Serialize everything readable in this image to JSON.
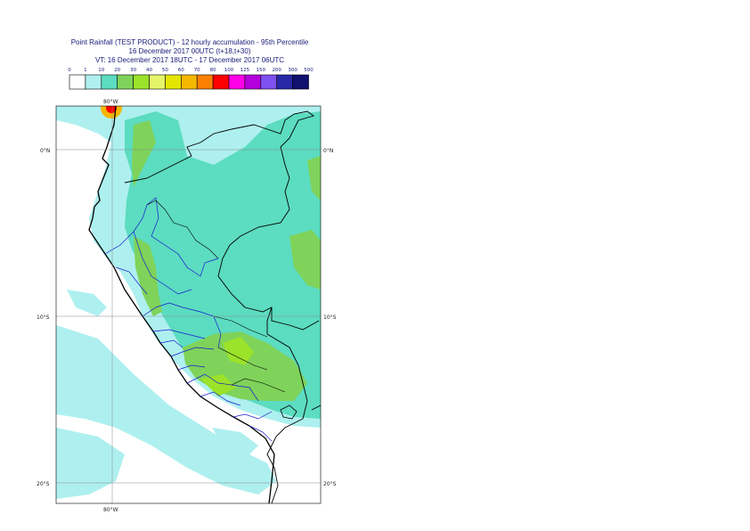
{
  "title": {
    "line1": "Point Rainfall (TEST PRODUCT) - 12 hourly accumulation - 95th Percentile",
    "line2": "16 December 2017 00UTC (t+18,t+30)",
    "line3": "VT: 16 December 2017 18UTC - 17 December 2017 06UTC"
  },
  "legend": {
    "thresholds": [
      "0",
      "1",
      "10",
      "20",
      "30",
      "40",
      "50",
      "60",
      "70",
      "80",
      "100",
      "125",
      "150",
      "200",
      "300",
      "500"
    ],
    "colors": [
      "#ffffff",
      "#aef0ef",
      "#5cdcc0",
      "#7fd35a",
      "#9be22a",
      "#e4f56a",
      "#e4e600",
      "#f5b800",
      "#ff8000",
      "#ff0000",
      "#ff00e6",
      "#b400dc",
      "#7d50f0",
      "#2828a8",
      "#10106e"
    ]
  },
  "map": {
    "lat_labels": [
      "0°N",
      "10°S",
      "20°S"
    ],
    "lon_label_top": "80°W",
    "lon_label_bottom": "80°W"
  }
}
